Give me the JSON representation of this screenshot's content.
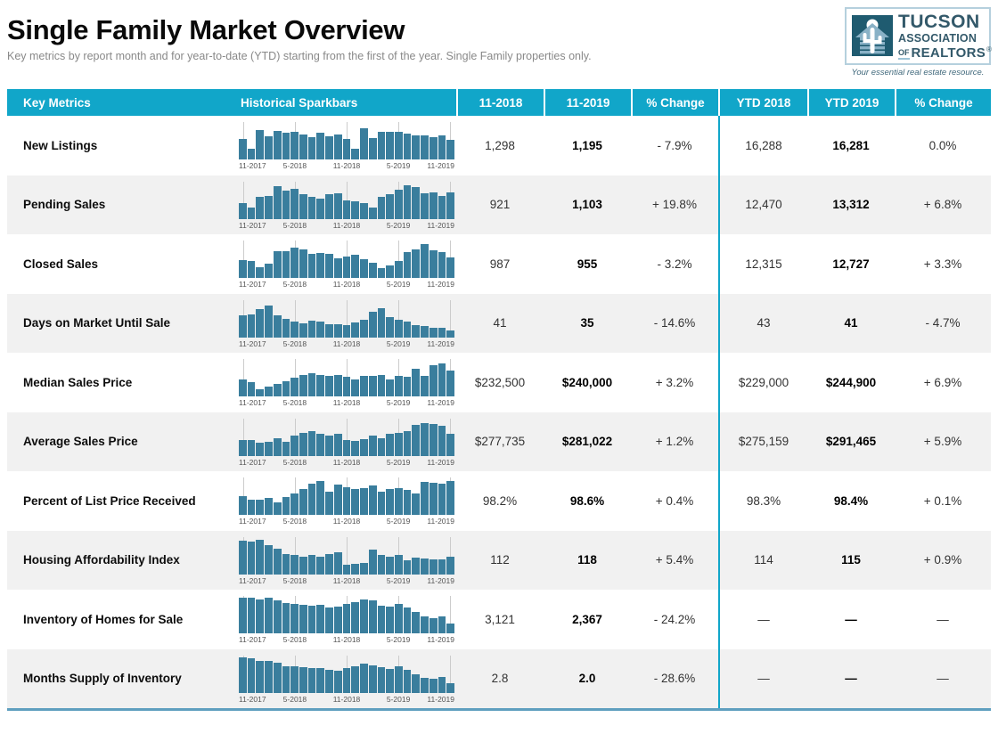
{
  "header": {
    "title": "Single Family Market Overview",
    "subtitle": "Key metrics by report month and for year-to-date (YTD) starting from the first of the year. Single Family properties only."
  },
  "logo": {
    "org_line1": "TUCSON",
    "org_line2": "ASSOCIATION",
    "org_line3_of": "OF",
    "org_line3_realtors": "REALTORS",
    "registered_mark": "®",
    "tagline": "Your essential real estate resource.",
    "icon": "house-cactus-icon"
  },
  "colors": {
    "header_bg": "#11a6c9",
    "sparkbar": "#3a7e9d",
    "row_alt_bg": "#f1f1f1",
    "gridline": "#cccccc",
    "bottom_rule": "#5f9fbf",
    "logo_dark_teal": "#1f5b70",
    "logo_border": "#b5d0dd",
    "logo_text": "#33596a"
  },
  "chart_data": {
    "type": "table",
    "title": "Single Family Market Overview",
    "columns": [
      "Key Metrics",
      "Historical Sparkbars",
      "11-2018",
      "11-2019",
      "% Change",
      "YTD 2018",
      "YTD 2019",
      "% Change"
    ],
    "sparkbar_type": "bar",
    "sparkbar_period": "11-2017 to 11-2019",
    "sparkbar_months": 25,
    "sparkbar_axis_ticks": [
      "11-2017",
      "5-2018",
      "11-2018",
      "5-2019",
      "11-2019"
    ],
    "sparkbar_tick_indices": [
      0,
      6,
      12,
      18,
      24
    ],
    "sparkbar_note": "values are relative bar heights 0-100 estimated from pixels",
    "rows": [
      {
        "metric": "New Listings",
        "nov_2018": "1,298",
        "nov_2019": "1,195",
        "pct_change": "- 7.9%",
        "ytd_2018": "16,288",
        "ytd_2019": "16,281",
        "ytd_pct_change": "0.0%",
        "sparkbar": [
          55,
          30,
          80,
          63,
          78,
          72,
          75,
          68,
          60,
          72,
          62,
          68,
          55,
          30,
          85,
          58,
          74,
          74,
          74,
          70,
          64,
          66,
          60,
          66,
          52
        ]
      },
      {
        "metric": "Pending Sales",
        "nov_2018": "921",
        "nov_2019": "1,103",
        "pct_change": "+ 19.8%",
        "ytd_2018": "12,470",
        "ytd_2019": "13,312",
        "ytd_pct_change": "+ 6.8%",
        "sparkbar": [
          42,
          30,
          60,
          62,
          88,
          75,
          80,
          65,
          60,
          55,
          65,
          68,
          50,
          48,
          42,
          30,
          58,
          65,
          78,
          90,
          85,
          68,
          72,
          62,
          72
        ]
      },
      {
        "metric": "Closed Sales",
        "nov_2018": "987",
        "nov_2019": "955",
        "pct_change": "- 3.2%",
        "ytd_2018": "12,315",
        "ytd_2019": "12,727",
        "ytd_pct_change": "+ 3.3%",
        "sparkbar": [
          48,
          45,
          30,
          38,
          72,
          72,
          82,
          78,
          65,
          68,
          65,
          52,
          58,
          62,
          50,
          42,
          28,
          35,
          45,
          70,
          78,
          92,
          75,
          70,
          55
        ]
      },
      {
        "metric": "Days on Market Until Sale",
        "nov_2018": "41",
        "nov_2019": "35",
        "pct_change": "- 14.6%",
        "ytd_2018": "43",
        "ytd_2019": "41",
        "ytd_pct_change": "- 4.7%",
        "sparkbar": [
          60,
          62,
          75,
          85,
          60,
          50,
          42,
          38,
          45,
          42,
          36,
          34,
          32,
          40,
          46,
          68,
          78,
          55,
          48,
          42,
          32,
          30,
          26,
          26,
          18
        ]
      },
      {
        "metric": "Median Sales Price",
        "nov_2018": "$232,500",
        "nov_2019": "$240,000",
        "pct_change": "+ 3.2%",
        "ytd_2018": "$229,000",
        "ytd_2019": "$244,900",
        "ytd_pct_change": "+ 6.9%",
        "sparkbar": [
          45,
          38,
          20,
          28,
          35,
          42,
          50,
          58,
          62,
          58,
          55,
          58,
          52,
          45,
          55,
          55,
          58,
          45,
          55,
          52,
          75,
          55,
          85,
          88,
          70
        ]
      },
      {
        "metric": "Average Sales Price",
        "nov_2018": "$277,735",
        "nov_2019": "$281,022",
        "pct_change": "+ 1.2%",
        "ytd_2018": "$275,159",
        "ytd_2019": "$291,465",
        "ytd_pct_change": "+ 5.9%",
        "sparkbar": [
          42,
          42,
          35,
          38,
          48,
          38,
          55,
          62,
          65,
          58,
          55,
          58,
          42,
          40,
          45,
          55,
          48,
          58,
          62,
          65,
          82,
          88,
          85,
          80,
          58
        ]
      },
      {
        "metric": "Percent of List Price Received",
        "nov_2018": "98.2%",
        "nov_2019": "98.6%",
        "pct_change": "+ 0.4%",
        "ytd_2018": "98.3%",
        "ytd_2019": "98.4%",
        "ytd_pct_change": "+ 0.1%",
        "sparkbar": [
          50,
          40,
          42,
          45,
          35,
          48,
          58,
          70,
          85,
          92,
          62,
          82,
          75,
          70,
          72,
          80,
          62,
          70,
          72,
          68,
          58,
          88,
          86,
          84,
          92
        ]
      },
      {
        "metric": "Housing Affordability Index",
        "nov_2018": "112",
        "nov_2019": "118",
        "pct_change": "+ 5.4%",
        "ytd_2018": "114",
        "ytd_2019": "115",
        "ytd_pct_change": "+ 0.9%",
        "sparkbar": [
          90,
          88,
          92,
          78,
          68,
          55,
          52,
          48,
          52,
          48,
          55,
          58,
          25,
          28,
          30,
          65,
          52,
          48,
          52,
          38,
          45,
          42,
          40,
          40,
          48
        ]
      },
      {
        "metric": "Inventory of Homes for Sale",
        "nov_2018": "3,121",
        "nov_2019": "2,367",
        "pct_change": "- 24.2%",
        "ytd_2018": "—",
        "ytd_2019": "—",
        "ytd_pct_change": "—",
        "sparkbar": [
          95,
          95,
          92,
          95,
          88,
          82,
          80,
          78,
          75,
          78,
          70,
          72,
          80,
          85,
          90,
          88,
          75,
          72,
          80,
          70,
          58,
          45,
          40,
          46,
          28
        ]
      },
      {
        "metric": "Months Supply of Inventory",
        "nov_2018": "2.8",
        "nov_2019": "2.0",
        "pct_change": "- 28.6%",
        "ytd_2018": "—",
        "ytd_2019": "—",
        "ytd_pct_change": "—",
        "sparkbar": [
          95,
          92,
          86,
          85,
          80,
          72,
          70,
          68,
          66,
          65,
          62,
          60,
          66,
          72,
          78,
          74,
          68,
          64,
          70,
          62,
          50,
          40,
          38,
          42,
          26
        ]
      }
    ]
  }
}
